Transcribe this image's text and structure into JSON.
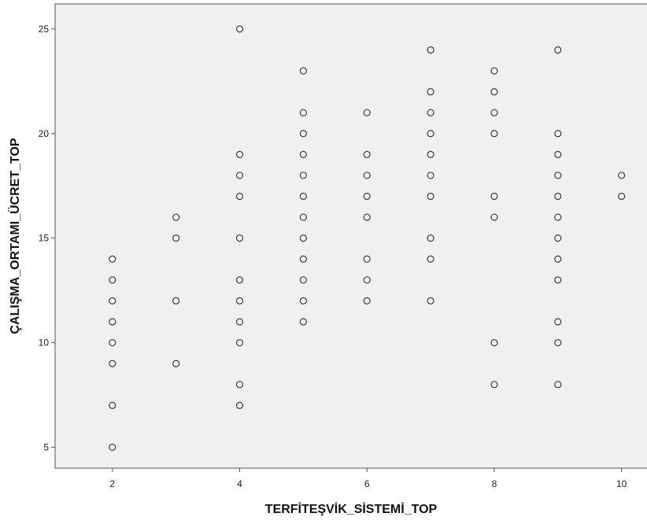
{
  "chart_data": {
    "type": "scatter",
    "title": "",
    "xlabel": "TERFİTEŞVİK_SİSTEMİ_TOP",
    "ylabel": "ÇALIŞMA_ORTAMI_ÜCRET_TOP",
    "xlim": [
      1.1,
      10.4
    ],
    "ylim": [
      4,
      26.2
    ],
    "x_ticks": [
      "2",
      "4",
      "6",
      "8",
      "10"
    ],
    "y_ticks": [
      "5",
      "10",
      "15",
      "20",
      "25"
    ],
    "grid": false,
    "legend": "none",
    "colors": {
      "plot_background": "#f0f0f0",
      "marker_stroke": "#3c3c3c",
      "frame": "#555555"
    },
    "series": [
      {
        "points": [
          [
            2,
            5
          ],
          [
            2,
            7
          ],
          [
            2,
            9
          ],
          [
            2,
            10
          ],
          [
            2,
            11
          ],
          [
            2,
            12
          ],
          [
            2,
            13
          ],
          [
            2,
            14
          ],
          [
            3,
            9
          ],
          [
            3,
            12
          ],
          [
            3,
            15
          ],
          [
            3,
            16
          ],
          [
            4,
            7
          ],
          [
            4,
            8
          ],
          [
            4,
            10
          ],
          [
            4,
            11
          ],
          [
            4,
            12
          ],
          [
            4,
            13
          ],
          [
            4,
            15
          ],
          [
            4,
            17
          ],
          [
            4,
            18
          ],
          [
            4,
            19
          ],
          [
            4,
            25
          ],
          [
            5,
            11
          ],
          [
            5,
            12
          ],
          [
            5,
            13
          ],
          [
            5,
            14
          ],
          [
            5,
            15
          ],
          [
            5,
            16
          ],
          [
            5,
            17
          ],
          [
            5,
            18
          ],
          [
            5,
            19
          ],
          [
            5,
            20
          ],
          [
            5,
            21
          ],
          [
            5,
            23
          ],
          [
            6,
            12
          ],
          [
            6,
            13
          ],
          [
            6,
            14
          ],
          [
            6,
            16
          ],
          [
            6,
            17
          ],
          [
            6,
            18
          ],
          [
            6,
            19
          ],
          [
            6,
            21
          ],
          [
            7,
            12
          ],
          [
            7,
            14
          ],
          [
            7,
            15
          ],
          [
            7,
            17
          ],
          [
            7,
            18
          ],
          [
            7,
            19
          ],
          [
            7,
            20
          ],
          [
            7,
            21
          ],
          [
            7,
            22
          ],
          [
            7,
            24
          ],
          [
            8,
            8
          ],
          [
            8,
            10
          ],
          [
            8,
            16
          ],
          [
            8,
            17
          ],
          [
            8,
            20
          ],
          [
            8,
            21
          ],
          [
            8,
            22
          ],
          [
            8,
            23
          ],
          [
            9,
            8
          ],
          [
            9,
            10
          ],
          [
            9,
            11
          ],
          [
            9,
            13
          ],
          [
            9,
            14
          ],
          [
            9,
            15
          ],
          [
            9,
            16
          ],
          [
            9,
            17
          ],
          [
            9,
            18
          ],
          [
            9,
            19
          ],
          [
            9,
            20
          ],
          [
            9,
            24
          ],
          [
            10,
            17
          ],
          [
            10,
            18
          ]
        ]
      }
    ]
  }
}
